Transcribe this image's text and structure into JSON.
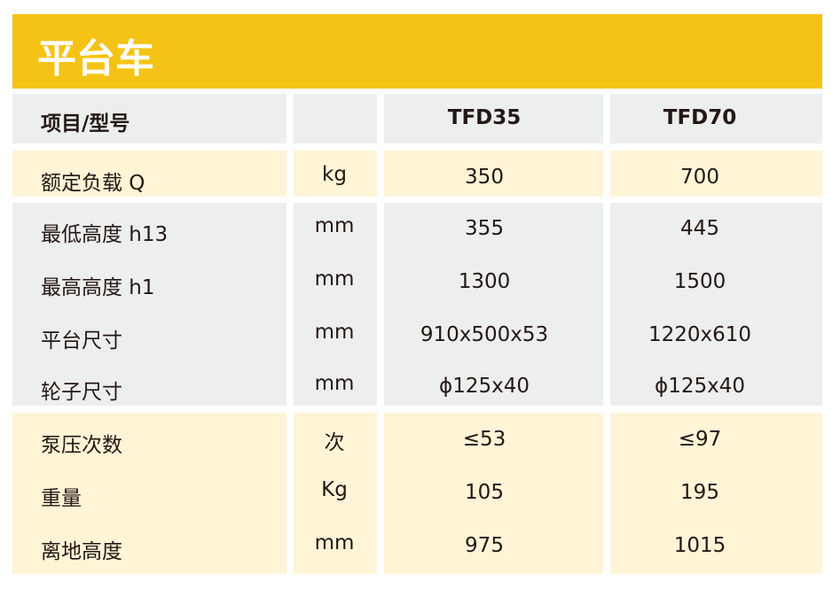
{
  "title": "平台车",
  "header": {
    "item": "项目/型号",
    "unit": "",
    "models": [
      "TFD35",
      "TFD70"
    ]
  },
  "rows": [
    {
      "label": "额定负载  Q",
      "unit": "kg",
      "v1": "350",
      "v2": "700"
    },
    {
      "label": "最低高度  h13",
      "unit": "mm",
      "v1": "355",
      "v2": "445"
    },
    {
      "label": "最高高度  h1",
      "unit": "mm",
      "v1": "1300",
      "v2": "1500"
    },
    {
      "label": "平台尺寸",
      "unit": "mm",
      "v1": "910x500x53",
      "v2": "1220x610"
    },
    {
      "label": "轮子尺寸",
      "unit": "mm",
      "v1": "ϕ125x40",
      "v2": "ϕ125x40"
    },
    {
      "label": "泵压次数",
      "unit": "次",
      "v1": "≤53",
      "v2": "≤97"
    },
    {
      "label": "重量",
      "unit": "Kg",
      "v1": "105",
      "v2": "195"
    },
    {
      "label": "离地高度",
      "unit": "mm",
      "v1": "975",
      "v2": "1015"
    }
  ],
  "colors": {
    "title_bar": "#F5C315",
    "gray": "#EDEEEE",
    "light_yellow": "#FFF4D6"
  }
}
